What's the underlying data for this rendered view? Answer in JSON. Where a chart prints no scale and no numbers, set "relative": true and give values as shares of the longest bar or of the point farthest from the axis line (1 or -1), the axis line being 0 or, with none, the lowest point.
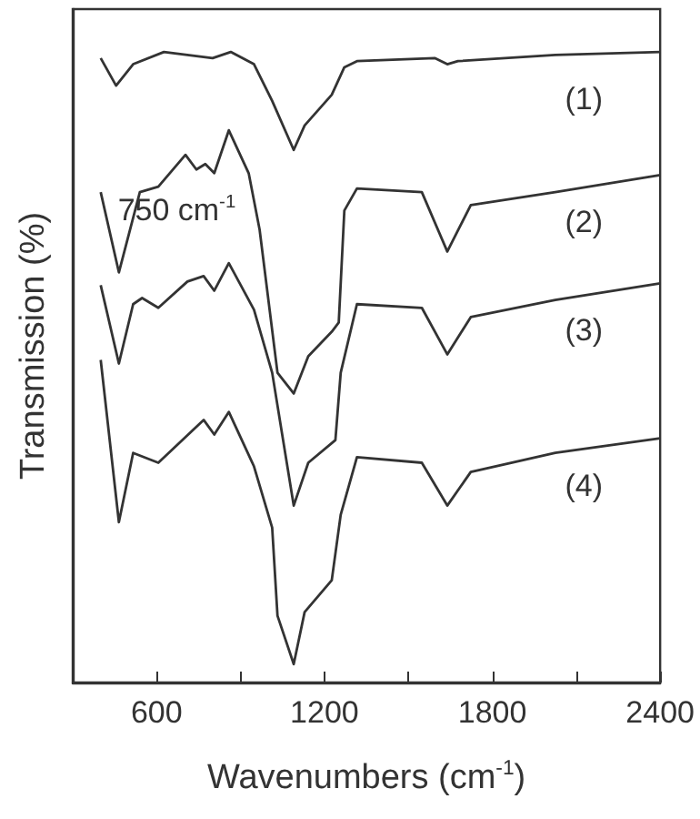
{
  "chart_data": {
    "type": "line",
    "xlabel": "Wavenumbers (cm$^{-1}$)",
    "ylabel": "Transmission (%)",
    "relative": true,
    "xlim": [
      300,
      2400
    ],
    "xticks": [
      600,
      {
        "value": 900,
        "label": null
      },
      1200,
      {
        "value": 1500,
        "label": null
      },
      1800,
      {
        "value": 2100,
        "label": null
      },
      2400
    ],
    "legend": false,
    "grid": false,
    "marker": "none",
    "line_style": "solid",
    "annotations": [
      {
        "text": "750 cm$^{-1}$",
        "x": 750,
        "y": 0.81
      }
    ],
    "series": [
      {
        "name": "(1)",
        "color": "#333333",
        "x": [
          400,
          455,
          516,
          626,
          800,
          865,
          948,
          1013,
          1090,
          1129,
          1226,
          1271,
          1316,
          1594,
          1639,
          1677,
          2025,
          2400
        ],
        "values": [
          0.99,
          0.945,
          0.98,
          1.0,
          0.99,
          1.0,
          0.98,
          0.92,
          0.84,
          0.88,
          0.93,
          0.975,
          0.985,
          0.99,
          0.98,
          0.985,
          0.995,
          1.0
        ]
      },
      {
        "name": "(2)",
        "color": "#333333",
        "x": [
          400,
          465,
          540,
          606,
          703,
          742,
          774,
          806,
          858,
          929,
          968,
          1032,
          1090,
          1142,
          1226,
          1251,
          1271,
          1316,
          1548,
          1639,
          1723,
          2025,
          2400
        ],
        "values": [
          0.771,
          0.64,
          0.771,
          0.78,
          0.832,
          0.808,
          0.817,
          0.802,
          0.872,
          0.802,
          0.71,
          0.476,
          0.442,
          0.503,
          0.543,
          0.558,
          0.741,
          0.777,
          0.771,
          0.674,
          0.75,
          0.771,
          0.799
        ]
      },
      {
        "name": "(3)",
        "color": "#333333",
        "x": [
          400,
          465,
          516,
          548,
          606,
          710,
          768,
          806,
          858,
          948,
          1013,
          1090,
          1142,
          1239,
          1258,
          1316,
          1548,
          1639,
          1723,
          2025,
          2400
        ],
        "values": [
          0.619,
          0.491,
          0.588,
          0.598,
          0.582,
          0.625,
          0.634,
          0.61,
          0.655,
          0.579,
          0.476,
          0.259,
          0.329,
          0.366,
          0.476,
          0.588,
          0.582,
          0.506,
          0.567,
          0.595,
          0.622
        ]
      },
      {
        "name": "(4)",
        "color": "#333333",
        "x": [
          400,
          465,
          516,
          606,
          768,
          806,
          858,
          948,
          1013,
          1032,
          1090,
          1129,
          1226,
          1258,
          1316,
          1548,
          1639,
          1723,
          2025,
          2400
        ],
        "values": [
          0.497,
          0.232,
          0.345,
          0.329,
          0.399,
          0.375,
          0.412,
          0.323,
          0.223,
          0.079,
          0.0,
          0.085,
          0.137,
          0.244,
          0.338,
          0.329,
          0.259,
          0.314,
          0.345,
          0.369
        ]
      }
    ]
  }
}
